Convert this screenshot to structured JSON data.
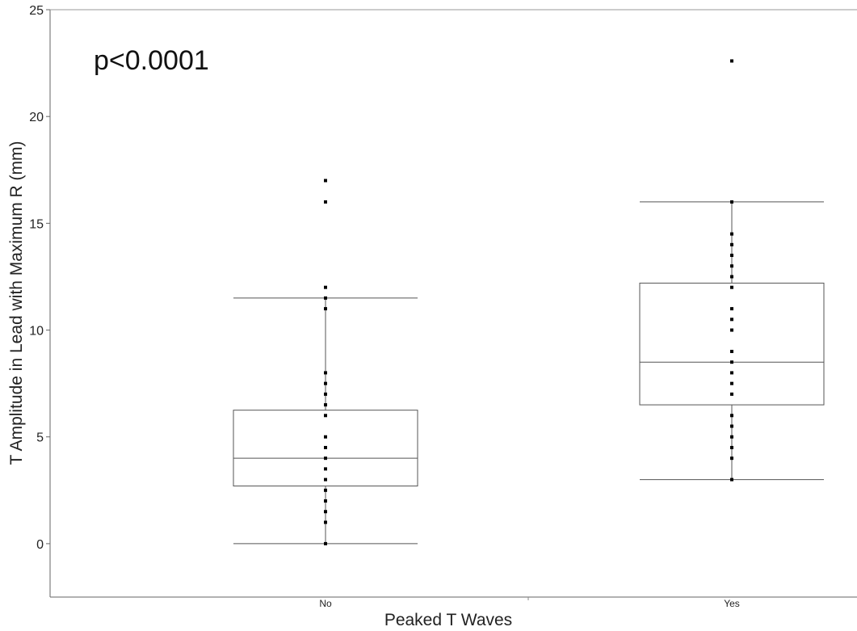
{
  "chart_data": {
    "type": "box",
    "title": "",
    "annotation": "p<0.0001",
    "xlabel": "Peaked T Waves",
    "ylabel": "T Amplitude in Lead with Maximum R (mm)",
    "ylim": [
      -2.5,
      25
    ],
    "yticks": [
      0,
      5,
      10,
      15,
      20,
      25
    ],
    "ytick_labels": [
      "0",
      "5",
      "10",
      "15",
      "20",
      "25"
    ],
    "categories": [
      "No",
      "Yes"
    ],
    "grid": false,
    "boxes": [
      {
        "category": "No",
        "whisker_low": 0,
        "q1": 2.7,
        "median": 4.0,
        "q3": 6.25,
        "whisker_high": 11.5,
        "points": [
          0,
          1,
          1.5,
          2,
          2.5,
          3,
          3.5,
          4,
          4.5,
          5,
          6,
          6.5,
          7,
          7.5,
          8,
          11,
          11.5,
          12,
          16,
          17
        ]
      },
      {
        "category": "Yes",
        "whisker_low": 3,
        "q1": 6.5,
        "median": 8.5,
        "q3": 12.2,
        "whisker_high": 16,
        "points": [
          3,
          4,
          4.5,
          5,
          5.5,
          6,
          7,
          7.5,
          8,
          8.5,
          9,
          10,
          10.5,
          11,
          12,
          12.5,
          13,
          13.5,
          14,
          14.5,
          16,
          22.6
        ]
      }
    ]
  }
}
